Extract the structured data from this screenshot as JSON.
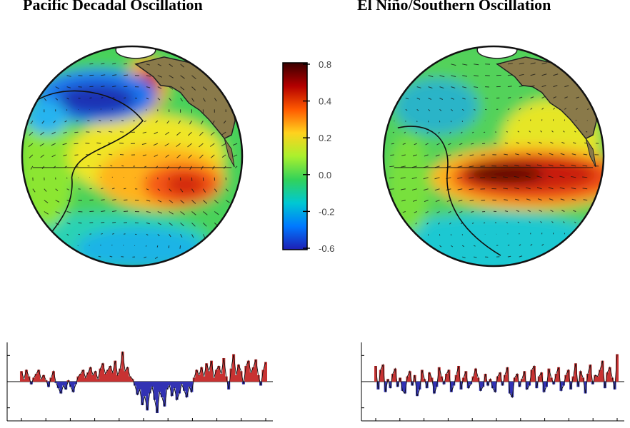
{
  "titles": {
    "left": "Pacific Decadal Oscillation",
    "right": "El Niño/Southern Oscillation"
  },
  "colorbar": {
    "tick_labels": [
      "0.8",
      "0.4",
      "0.2",
      "0.0",
      "-0.2",
      "-0.6"
    ],
    "colors": [
      "#3a0000",
      "#b40000",
      "#ff5a00",
      "#ffd21e",
      "#aaf02d",
      "#32d25a",
      "#00c8d2",
      "#0078ff",
      "#1e1eb4"
    ]
  },
  "maps": {
    "land_color": "#8a7a4a",
    "ice_color": "#ffffff",
    "left_pattern": "pdo",
    "right_pattern": "enso"
  },
  "chart_data": [
    {
      "type": "area",
      "title": "",
      "xlabel": "",
      "ylabel": "",
      "ylim": [
        -3,
        3
      ],
      "x_range": [
        1900,
        2000
      ],
      "positive_color": "#c83232",
      "negative_color": "#3232b4",
      "values": [
        0.8,
        0.2,
        0.9,
        0.4,
        -0.2,
        0.3,
        0.6,
        0.9,
        0.2,
        0.5,
        0.1,
        -0.4,
        0.3,
        0.8,
        -0.1,
        -0.5,
        -0.9,
        -0.3,
        -0.6,
        0.1,
        -0.4,
        -0.8,
        -0.2,
        0.4,
        0.6,
        0.9,
        0.3,
        0.7,
        1.1,
        0.5,
        0.8,
        0.2,
        1.0,
        1.4,
        0.6,
        0.9,
        1.2,
        0.7,
        1.6,
        0.5,
        1.0,
        2.3,
        0.8,
        1.1,
        0.4,
        0.2,
        -0.3,
        -1.0,
        -0.6,
        -1.8,
        -1.1,
        -2.2,
        -0.9,
        -0.4,
        -1.4,
        -2.4,
        -0.8,
        -1.2,
        -1.9,
        -0.6,
        -0.3,
        -1.1,
        -0.5,
        -1.4,
        -0.9,
        -0.2,
        -0.7,
        -1.2,
        -0.4,
        -0.8,
        0.3,
        0.9,
        0.5,
        1.1,
        0.4,
        1.4,
        0.8,
        1.6,
        0.3,
        0.9,
        1.2,
        0.6,
        1.8,
        0.4,
        -0.6,
        1.0,
        2.1,
        0.5,
        1.3,
        0.8,
        -0.2,
        1.2,
        1.6,
        0.7,
        1.1,
        1.7,
        0.5,
        -0.3,
        0.9,
        1.5
      ]
    },
    {
      "type": "area",
      "title": "",
      "xlabel": "",
      "ylabel": "",
      "ylim": [
        -3,
        3
      ],
      "x_range": [
        1900,
        2000
      ],
      "positive_color": "#c83232",
      "negative_color": "#3232b4",
      "values": [
        1.2,
        -0.6,
        0.9,
        1.3,
        -0.8,
        0.2,
        -0.5,
        0.6,
        1.0,
        -0.4,
        0.3,
        -0.7,
        -0.9,
        0.4,
        0.8,
        -0.3,
        0.5,
        -1.1,
        -0.6,
        0.9,
        0.2,
        -0.5,
        0.7,
        0.3,
        -0.9,
        -0.4,
        1.1,
        0.4,
        -0.2,
        0.6,
        0.9,
        -0.8,
        -0.3,
        0.5,
        1.2,
        -0.6,
        0.3,
        0.8,
        -0.5,
        -0.2,
        0.4,
        1.0,
        0.3,
        -0.7,
        -0.4,
        0.6,
        -0.3,
        0.2,
        -0.5,
        -0.8,
        0.4,
        0.7,
        -0.3,
        0.5,
        1.1,
        -0.9,
        -1.2,
        0.3,
        0.6,
        -0.4,
        0.2,
        0.8,
        -0.6,
        -0.3,
        0.9,
        1.2,
        -0.5,
        0.4,
        0.7,
        -0.8,
        -0.4,
        1.0,
        0.3,
        -0.2,
        0.6,
        1.1,
        -0.7,
        -0.3,
        0.5,
        0.9,
        -0.6,
        0.4,
        1.4,
        -0.4,
        0.8,
        0.3,
        -0.9,
        0.6,
        1.3,
        -0.2,
        0.5,
        0.4,
        0.9,
        1.6,
        -0.5,
        0.7,
        1.1,
        0.3,
        -0.6,
        2.1
      ]
    }
  ]
}
